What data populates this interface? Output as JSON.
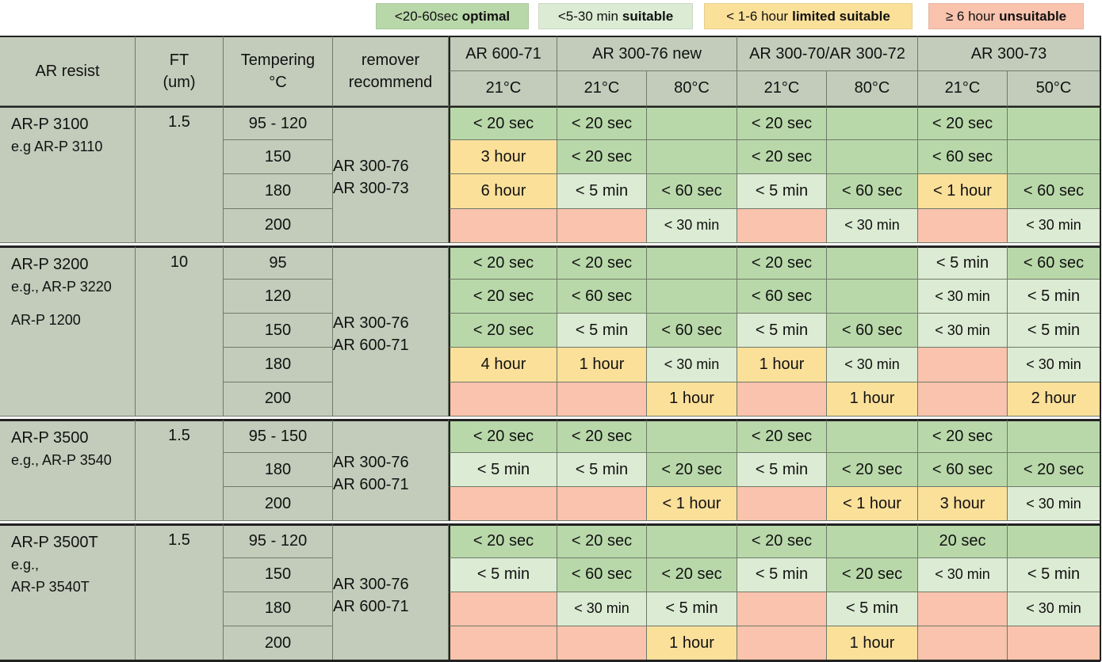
{
  "colors": {
    "optimal": "#b9d8aa",
    "suitable": "#dcebd3",
    "limited": "#fbe09a",
    "unsuitable": "#f9c3ad",
    "header": "#c3ccbb",
    "border": "#6f7a69"
  },
  "legend": [
    {
      "prefix": "<20-60sec",
      "bold": "optimal",
      "level": "optimal"
    },
    {
      "prefix": "<5-30 min",
      "bold": "suitable",
      "level": "suitable"
    },
    {
      "prefix": "< 1-6 hour",
      "bold": "limited suitable",
      "level": "limited"
    },
    {
      "prefix": "≥ 6 hour",
      "bold": "unsuitable",
      "level": "unsuitable"
    }
  ],
  "header": {
    "ar_resist": "AR resist",
    "ft_line1": "FT",
    "ft_line2": "(um)",
    "tempering_line1": "Tempering",
    "tempering_line2": "°C",
    "remover_line1": "remover",
    "remover_line2": "recommend",
    "removers": [
      {
        "name": "AR 600-71",
        "temps": [
          "21°C"
        ]
      },
      {
        "name": "AR 300-76 new",
        "temps": [
          "21°C",
          "80°C"
        ]
      },
      {
        "name": "AR 300-70/AR 300-72",
        "temps": [
          "21°C",
          "80°C"
        ]
      },
      {
        "name": "AR 300-73",
        "temps": [
          "21°C",
          "50°C"
        ]
      }
    ]
  },
  "groups": [
    {
      "resist": [
        "AR-P 3100",
        "e.g AR-P 3110"
      ],
      "ft": "1.5",
      "removers": [
        "AR 300-76",
        "AR 300-73"
      ],
      "rows": [
        {
          "temp": "95 - 120",
          "cells": [
            [
              "< 20 sec",
              "optimal"
            ],
            [
              "< 20 sec",
              "optimal"
            ],
            [
              "",
              "optimal"
            ],
            [
              "< 20 sec",
              "optimal"
            ],
            [
              "",
              "optimal"
            ],
            [
              "< 20 sec",
              "optimal"
            ],
            [
              "",
              "optimal"
            ]
          ]
        },
        {
          "temp": "150",
          "cells": [
            [
              "3 hour",
              "limited"
            ],
            [
              "< 20 sec",
              "optimal"
            ],
            [
              "",
              "optimal"
            ],
            [
              "< 20 sec",
              "optimal"
            ],
            [
              "",
              "optimal"
            ],
            [
              "< 60 sec",
              "optimal"
            ],
            [
              "",
              "optimal"
            ]
          ]
        },
        {
          "temp": "180",
          "cells": [
            [
              "6 hour",
              "limited"
            ],
            [
              "< 5 min",
              "suitable"
            ],
            [
              "< 60 sec",
              "optimal"
            ],
            [
              "< 5 min",
              "suitable"
            ],
            [
              "< 60 sec",
              "optimal"
            ],
            [
              "< 1 hour",
              "limited"
            ],
            [
              "< 60 sec",
              "optimal"
            ]
          ]
        },
        {
          "temp": "200",
          "cells": [
            [
              "",
              "unsuitable"
            ],
            [
              "",
              "unsuitable"
            ],
            [
              "< 30 min",
              "suitable"
            ],
            [
              "",
              "unsuitable"
            ],
            [
              "< 30 min",
              "suitable"
            ],
            [
              "",
              "unsuitable"
            ],
            [
              "< 30 min",
              "suitable"
            ]
          ]
        }
      ]
    },
    {
      "resist": [
        "AR-P 3200",
        "e.g., AR-P 3220",
        "",
        "AR-P 1200"
      ],
      "ft": "10",
      "removers": [
        "AR 300-76",
        "AR 600-71"
      ],
      "rows": [
        {
          "temp": "95",
          "cells": [
            [
              "< 20 sec",
              "optimal"
            ],
            [
              "< 20 sec",
              "optimal"
            ],
            [
              "",
              "optimal"
            ],
            [
              "< 20 sec",
              "optimal"
            ],
            [
              "",
              "optimal"
            ],
            [
              "< 5 min",
              "suitable"
            ],
            [
              "< 60 sec",
              "optimal"
            ]
          ]
        },
        {
          "temp": "120",
          "cells": [
            [
              "< 20 sec",
              "optimal"
            ],
            [
              "< 60 sec",
              "optimal"
            ],
            [
              "",
              "optimal"
            ],
            [
              "< 60 sec",
              "optimal"
            ],
            [
              "",
              "optimal"
            ],
            [
              "< 30 min",
              "suitable"
            ],
            [
              "< 5 min",
              "suitable"
            ]
          ]
        },
        {
          "temp": "150",
          "cells": [
            [
              "< 20 sec",
              "optimal"
            ],
            [
              "< 5 min",
              "suitable"
            ],
            [
              "< 60 sec",
              "optimal"
            ],
            [
              "< 5 min",
              "suitable"
            ],
            [
              "< 60 sec",
              "optimal"
            ],
            [
              "< 30 min",
              "suitable"
            ],
            [
              "< 5 min",
              "suitable"
            ]
          ]
        },
        {
          "temp": "180",
          "cells": [
            [
              "4 hour",
              "limited"
            ],
            [
              "1 hour",
              "limited"
            ],
            [
              "< 30 min",
              "suitable"
            ],
            [
              "1 hour",
              "limited"
            ],
            [
              "< 30 min",
              "suitable"
            ],
            [
              "",
              "unsuitable"
            ],
            [
              "< 30 min",
              "suitable"
            ]
          ]
        },
        {
          "temp": "200",
          "cells": [
            [
              "",
              "unsuitable"
            ],
            [
              "",
              "unsuitable"
            ],
            [
              "1 hour",
              "limited"
            ],
            [
              "",
              "unsuitable"
            ],
            [
              "1 hour",
              "limited"
            ],
            [
              "",
              "unsuitable"
            ],
            [
              "2 hour",
              "limited"
            ]
          ]
        }
      ]
    },
    {
      "resist": [
        "AR-P 3500",
        "e.g., AR-P 3540"
      ],
      "ft": "1.5",
      "removers": [
        "AR 300-76",
        "AR 600-71"
      ],
      "rows": [
        {
          "temp": "95 - 150",
          "cells": [
            [
              "< 20 sec",
              "optimal"
            ],
            [
              "< 20 sec",
              "optimal"
            ],
            [
              "",
              "optimal"
            ],
            [
              "< 20 sec",
              "optimal"
            ],
            [
              "",
              "optimal"
            ],
            [
              "< 20 sec",
              "optimal"
            ],
            [
              "",
              "optimal"
            ]
          ]
        },
        {
          "temp": "180",
          "cells": [
            [
              "< 5 min",
              "suitable"
            ],
            [
              "< 5 min",
              "suitable"
            ],
            [
              "< 20 sec",
              "optimal"
            ],
            [
              "< 5 min",
              "suitable"
            ],
            [
              "< 20 sec",
              "optimal"
            ],
            [
              "< 60 sec",
              "optimal"
            ],
            [
              "< 20 sec",
              "optimal"
            ]
          ]
        },
        {
          "temp": "200",
          "cells": [
            [
              "",
              "unsuitable"
            ],
            [
              "",
              "unsuitable"
            ],
            [
              "< 1 hour",
              "limited"
            ],
            [
              "",
              "unsuitable"
            ],
            [
              "< 1 hour",
              "limited"
            ],
            [
              "3 hour",
              "limited"
            ],
            [
              "< 30 min",
              "suitable"
            ]
          ]
        }
      ]
    },
    {
      "resist": [
        "AR-P 3500T",
        "e.g.,",
        "AR-P 3540T"
      ],
      "ft": "1.5",
      "removers": [
        "AR 300-76",
        "AR 600-71"
      ],
      "rows": [
        {
          "temp": "95 - 120",
          "cells": [
            [
              "< 20 sec",
              "optimal"
            ],
            [
              "< 20 sec",
              "optimal"
            ],
            [
              "",
              "optimal"
            ],
            [
              "< 20 sec",
              "optimal"
            ],
            [
              "",
              "optimal"
            ],
            [
              "20 sec",
              "optimal"
            ],
            [
              "",
              "optimal"
            ]
          ]
        },
        {
          "temp": "150",
          "cells": [
            [
              "< 5 min",
              "suitable"
            ],
            [
              "< 60 sec",
              "optimal"
            ],
            [
              "< 20 sec",
              "optimal"
            ],
            [
              "< 5 min",
              "suitable"
            ],
            [
              "< 20 sec",
              "optimal"
            ],
            [
              "< 30 min",
              "suitable"
            ],
            [
              "< 5 min",
              "suitable"
            ]
          ]
        },
        {
          "temp": "180",
          "cells": [
            [
              "",
              "unsuitable"
            ],
            [
              "< 30 min",
              "suitable"
            ],
            [
              "< 5 min",
              "suitable"
            ],
            [
              "",
              "unsuitable"
            ],
            [
              "< 5 min",
              "suitable"
            ],
            [
              "",
              "unsuitable"
            ],
            [
              "< 30 min",
              "suitable"
            ]
          ]
        },
        {
          "temp": "200",
          "cells": [
            [
              "",
              "unsuitable"
            ],
            [
              "",
              "unsuitable"
            ],
            [
              "1 hour",
              "limited"
            ],
            [
              "",
              "unsuitable"
            ],
            [
              "1 hour",
              "limited"
            ],
            [
              "",
              "unsuitable"
            ],
            [
              "",
              "unsuitable"
            ]
          ]
        }
      ]
    }
  ]
}
